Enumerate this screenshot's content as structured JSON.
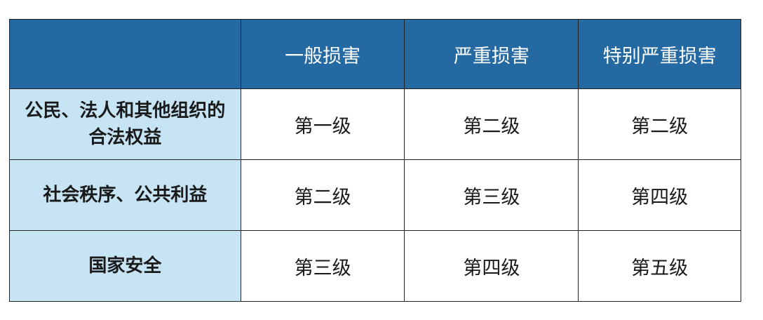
{
  "colors": {
    "header_bg": "#2569a3",
    "row_header_bg": "#c6e4f3"
  },
  "table": {
    "columns": [
      "",
      "一般损害",
      "严重损害",
      "特别严重损害"
    ],
    "rows": [
      {
        "label": "公民、法人和其他组织的合法权益",
        "cells": [
          "第一级",
          "第二级",
          "第二级"
        ]
      },
      {
        "label": "社会秩序、公共利益",
        "cells": [
          "第二级",
          "第三级",
          "第四级"
        ]
      },
      {
        "label": "国家安全",
        "cells": [
          "第三级",
          "第四级",
          "第五级"
        ]
      }
    ]
  }
}
